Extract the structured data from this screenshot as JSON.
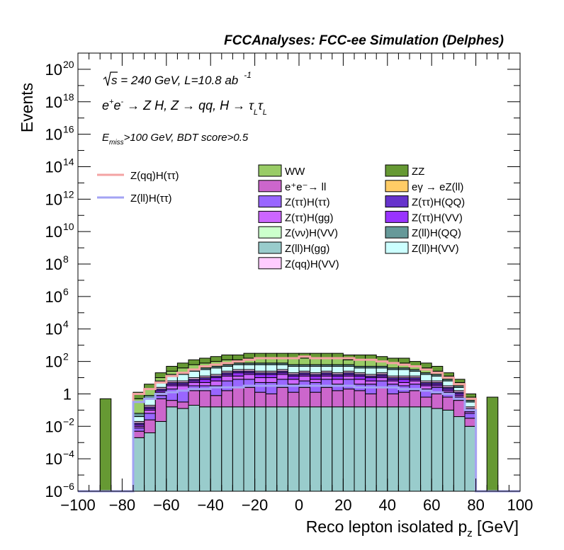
{
  "chart_data": {
    "type": "stacked-histogram",
    "title": "FCCAnalyses: FCC-ee Simulation (Delphes)",
    "xlabel": "Reco lepton isolated p",
    "xlabel_sub": "z",
    "xlabel_unit": " [GeV]",
    "ylabel": "Events",
    "xlim": [
      -100,
      100
    ],
    "ylim": [
      1e-06,
      1e+21
    ],
    "yscale": "log",
    "bin_width": 5,
    "x_ticks": [
      -100,
      -80,
      -60,
      -40,
      -20,
      0,
      20,
      40,
      60,
      80,
      100
    ],
    "x_tick_labels": [
      "−100",
      "−80",
      "−60",
      "−40",
      "−20",
      "0",
      "20",
      "40",
      "60",
      "80",
      "100"
    ],
    "y_ticks": [
      {
        "exp": -6,
        "label": "10",
        "sup": "−6"
      },
      {
        "exp": -4,
        "label": "10",
        "sup": "−4"
      },
      {
        "exp": -2,
        "label": "10",
        "sup": "−2"
      },
      {
        "exp": 0,
        "label": "1",
        "sup": ""
      },
      {
        "exp": 2,
        "label": "10",
        "sup": "2"
      },
      {
        "exp": 4,
        "label": "10",
        "sup": "4"
      },
      {
        "exp": 6,
        "label": "10",
        "sup": "6"
      },
      {
        "exp": 8,
        "label": "10",
        "sup": "8"
      },
      {
        "exp": 10,
        "label": "10",
        "sup": "10"
      },
      {
        "exp": 12,
        "label": "10",
        "sup": "12"
      },
      {
        "exp": 14,
        "label": "10",
        "sup": "14"
      },
      {
        "exp": 16,
        "label": "10",
        "sup": "16"
      },
      {
        "exp": 18,
        "label": "10",
        "sup": "18"
      },
      {
        "exp": 20,
        "label": "10",
        "sup": "20"
      }
    ],
    "annotations": {
      "energy": {
        "sqrt": "s",
        "text": " = 240 GeV, L=10.8 ab",
        "sup": "-1"
      },
      "process": "e⁺e⁻ → Z H, Z → qq, H → τₗτₗ",
      "process_parts": {
        "ep": "e",
        "ep_sup": "+",
        "em": "e",
        "em_sup": "-",
        "rest": " → Z H, Z  → qq, H  → τ",
        "sub1": "L",
        "tau2": "τ",
        "sub2": "L"
      },
      "cuts": {
        "E": "E",
        "sub": "miss",
        "rest": ">100 GeV, BDT score>0.5"
      }
    },
    "signal_legend": [
      {
        "name": "Z(qq)H(ττ)",
        "color": "#f4a3a3"
      },
      {
        "name": "Z(ll)H(ττ)",
        "color": "#a3a3f4"
      }
    ],
    "background_legend": [
      {
        "name": "WW",
        "color": "#99cc66"
      },
      {
        "name": "ZZ",
        "color": "#669933"
      },
      {
        "name": "e⁺e⁻→ ll",
        "color": "#cc66cc"
      },
      {
        "name": "eγ → eZ(ll)",
        "color": "#ffcc66"
      },
      {
        "name": "Z(ττ)H(ττ)",
        "color": "#9966ff"
      },
      {
        "name": "Z(ττ)H(QQ)",
        "color": "#6633cc"
      },
      {
        "name": "Z(ττ)H(gg)",
        "color": "#cc66ff"
      },
      {
        "name": "Z(ττ)H(VV)",
        "color": "#9933ff"
      },
      {
        "name": "Z(νν)H(VV)",
        "color": "#ccffcc"
      },
      {
        "name": "Z(ll)H(QQ)",
        "color": "#669999"
      },
      {
        "name": "Z(ll)H(gg)",
        "color": "#99cccc"
      },
      {
        "name": "Z(ll)H(VV)",
        "color": "#ccffff"
      },
      {
        "name": "Z(qq)H(VV)",
        "color": "#ffccff"
      }
    ],
    "x_bins_low": [
      -100,
      -95,
      -90,
      -85,
      -80,
      -75,
      -70,
      -65,
      -60,
      -55,
      -50,
      -45,
      -40,
      -35,
      -30,
      -25,
      -20,
      -15,
      -10,
      -5,
      0,
      5,
      10,
      15,
      20,
      25,
      30,
      35,
      40,
      45,
      50,
      55,
      60,
      65,
      70,
      75,
      80,
      85,
      90,
      95
    ],
    "stack_order": [
      "Z(ll)H(gg)",
      "eγ → eZ(ll)",
      "Z(νν)H(VV)",
      "e⁺e⁻→ ll",
      "Z(ττ)H(ττ)",
      "Z(ττ)H(gg)",
      "Z(ττ)H(VV)",
      "Z(ττ)H(QQ)",
      "Z(qq)H(VV)",
      "Z(ll)H(VV)",
      "Z(ll)H(QQ)",
      "WW",
      "ZZ"
    ],
    "stack_boundaries_log10": [
      [
        -6,
        -6,
        -6,
        -6,
        -6,
        -6,
        -6,
        -6,
        -6,
        -6,
        -6,
        -6,
        -6,
        -6,
        -6,
        -6,
        -6,
        -6,
        -6,
        -6,
        -6,
        -6,
        -6,
        -6,
        -6,
        -6,
        -6,
        -6,
        -6,
        -6,
        -6,
        -6,
        -6,
        -6,
        -6,
        -6,
        -6,
        -6,
        -6,
        -6
      ],
      [
        -6,
        -6,
        -6,
        -6,
        -6,
        -2.7,
        -2.4,
        -1.7,
        -0.8,
        -0.9,
        -0.7,
        -0.8,
        -0.8,
        -0.8,
        -0.8,
        -0.8,
        -0.8,
        -0.8,
        -0.8,
        -0.8,
        -0.8,
        -0.8,
        -0.8,
        -0.8,
        -0.8,
        -0.8,
        -0.8,
        -0.8,
        -0.8,
        -0.8,
        -0.8,
        -0.8,
        -0.9,
        -1.0,
        -1.4,
        -2.0,
        -6,
        -6,
        -6,
        -6
      ],
      [
        -6,
        -6,
        -6,
        -6,
        -6,
        -2.7,
        -2.4,
        -1.7,
        -0.8,
        -0.9,
        -0.7,
        -0.8,
        -0.8,
        -0.8,
        -0.8,
        -0.8,
        -0.8,
        -0.8,
        -0.8,
        -0.8,
        -0.8,
        -0.8,
        -0.8,
        -0.8,
        -0.8,
        -0.8,
        -0.8,
        -0.8,
        -0.8,
        -0.8,
        -0.8,
        -0.8,
        -0.9,
        -1.0,
        -1.4,
        -2.0,
        -6,
        -6,
        -6,
        -6
      ],
      [
        -6,
        -6,
        -6,
        -6,
        -6,
        -2.7,
        -2.4,
        -1.7,
        -0.8,
        -0.9,
        -0.7,
        -0.8,
        -0.8,
        -0.8,
        -0.8,
        -0.8,
        -0.8,
        -0.8,
        -0.8,
        -0.8,
        -0.8,
        -0.8,
        -0.8,
        -0.8,
        -0.8,
        -0.8,
        -0.8,
        -0.8,
        -0.8,
        -0.8,
        -0.8,
        -0.8,
        -0.9,
        -1.0,
        -1.4,
        -2.0,
        -6,
        -6,
        -6,
        -6
      ],
      [
        -6,
        -6,
        -6,
        -6,
        -6,
        -2.3,
        -1.6,
        -0.3,
        -0.4,
        -0.5,
        0.2,
        0.2,
        -0.1,
        0.2,
        0.4,
        0.4,
        0.1,
        0.0,
        0.4,
        0.1,
        0.4,
        0.1,
        0.4,
        0.2,
        0.3,
        0.2,
        0.0,
        0.4,
        0.0,
        0.1,
        0.2,
        -0.2,
        0.0,
        -0.2,
        -0.4,
        -1.5,
        -6,
        -6,
        -6,
        -6
      ],
      [
        -6,
        -6,
        -6,
        -6,
        -6,
        -2.1,
        -1.2,
        -0.1,
        0.3,
        0.2,
        0.5,
        0.5,
        0.5,
        0.8,
        0.9,
        0.9,
        0.7,
        0.7,
        0.9,
        0.6,
        0.8,
        0.7,
        0.9,
        0.6,
        0.9,
        0.6,
        0.6,
        0.8,
        0.6,
        0.5,
        0.6,
        0.3,
        0.4,
        0.1,
        -0.2,
        -1.2,
        -6,
        -6,
        -6,
        -6
      ],
      [
        -6,
        -6,
        -6,
        -6,
        -6,
        -2.0,
        -1.0,
        0.1,
        0.5,
        0.5,
        0.7,
        0.7,
        0.8,
        1.1,
        1.1,
        1.2,
        1.0,
        1.0,
        1.2,
        0.9,
        1.1,
        0.9,
        1.1,
        0.9,
        1.1,
        0.9,
        0.8,
        1.0,
        0.8,
        0.7,
        0.8,
        0.5,
        0.5,
        0.2,
        -0.1,
        -1.1,
        -6,
        -6,
        -6,
        -6
      ],
      [
        -6,
        -6,
        -6,
        -6,
        -6,
        -1.9,
        -0.9,
        0.2,
        0.6,
        0.6,
        0.8,
        0.9,
        1.0,
        1.2,
        1.3,
        1.3,
        1.2,
        1.2,
        1.3,
        1.1,
        1.2,
        1.1,
        1.2,
        1.1,
        1.2,
        1.1,
        1.0,
        1.1,
        0.9,
        0.9,
        0.9,
        0.6,
        0.6,
        0.3,
        0.0,
        -1.0,
        -6,
        -6,
        -6,
        -6
      ],
      [
        -6,
        -6,
        -6,
        -6,
        -6,
        -1.8,
        -0.8,
        0.3,
        0.7,
        0.7,
        0.9,
        1.0,
        1.1,
        1.3,
        1.4,
        1.4,
        1.3,
        1.3,
        1.4,
        1.2,
        1.3,
        1.2,
        1.3,
        1.2,
        1.3,
        1.2,
        1.1,
        1.2,
        1.0,
        1.0,
        1.0,
        0.7,
        0.7,
        0.4,
        0.1,
        -0.9,
        -6,
        -6,
        -6,
        -6
      ],
      [
        -6,
        -6,
        -6,
        -6,
        -6,
        -1.7,
        -0.7,
        0.4,
        0.8,
        0.8,
        1.0,
        1.1,
        1.2,
        1.4,
        1.5,
        1.5,
        1.4,
        1.4,
        1.5,
        1.3,
        1.4,
        1.3,
        1.4,
        1.3,
        1.4,
        1.3,
        1.2,
        1.3,
        1.1,
        1.1,
        1.1,
        0.8,
        0.8,
        0.5,
        0.2,
        -0.8,
        -6,
        -6,
        -6,
        -6
      ],
      [
        -6,
        -6,
        -6,
        -6,
        -6,
        -1.4,
        -0.3,
        0.7,
        1.1,
        1.2,
        1.4,
        1.5,
        1.6,
        1.7,
        1.8,
        1.8,
        1.8,
        1.8,
        1.8,
        1.7,
        1.7,
        1.7,
        1.7,
        1.7,
        1.7,
        1.6,
        1.6,
        1.6,
        1.5,
        1.5,
        1.4,
        1.2,
        1.1,
        0.8,
        0.4,
        -0.5,
        -6,
        -6,
        -6,
        -6
      ],
      [
        -6,
        -6,
        -6,
        -6,
        -6,
        -1.2,
        -0.1,
        0.8,
        1.2,
        1.3,
        1.5,
        1.6,
        1.7,
        1.8,
        1.9,
        1.9,
        1.9,
        1.9,
        1.9,
        1.8,
        1.8,
        1.8,
        1.8,
        1.8,
        1.8,
        1.7,
        1.7,
        1.7,
        1.6,
        1.6,
        1.5,
        1.3,
        1.2,
        0.9,
        0.5,
        -0.4,
        -6,
        -6,
        -6,
        -6
      ],
      [
        -6,
        -6,
        -6,
        -6,
        -6,
        -0.3,
        0.3,
        1.0,
        1.4,
        1.6,
        1.8,
        1.9,
        2.0,
        2.1,
        2.1,
        2.2,
        2.2,
        2.2,
        2.2,
        2.2,
        2.2,
        2.2,
        2.2,
        2.2,
        2.1,
        2.1,
        2.1,
        2.0,
        1.9,
        1.9,
        1.7,
        1.6,
        1.4,
        1.1,
        0.7,
        -0.2,
        -6,
        -6,
        -6,
        -6
      ],
      [
        -6,
        -6,
        -0.3,
        -6,
        -6,
        0.1,
        0.6,
        1.3,
        1.7,
        1.9,
        2.1,
        2.2,
        2.3,
        2.4,
        2.4,
        2.5,
        2.5,
        2.5,
        2.5,
        2.5,
        2.5,
        2.5,
        2.5,
        2.5,
        2.4,
        2.4,
        2.4,
        2.3,
        2.2,
        2.2,
        2.0,
        1.9,
        1.7,
        1.3,
        0.9,
        0.0,
        -6,
        -0.2,
        -6,
        -6
      ]
    ],
    "signal_series_log10": [
      {
        "name": "Z(qq)H(ττ)",
        "values": [
          -6,
          -6,
          -6,
          -6,
          -6,
          0.0,
          0.3,
          0.7,
          1.1,
          1.3,
          1.5,
          1.7,
          1.8,
          1.9,
          2.0,
          2.1,
          2.2,
          2.2,
          2.2,
          2.2,
          2.3,
          2.2,
          2.2,
          2.2,
          2.2,
          2.1,
          2.1,
          2.0,
          1.9,
          1.8,
          1.7,
          1.5,
          1.3,
          1.0,
          0.6,
          -0.3,
          -6,
          -6,
          -6,
          -6
        ]
      },
      {
        "name": "Z(ll)H(ττ)",
        "values": [
          -6,
          -6,
          -6,
          -6,
          -6,
          -0.5,
          -0.3,
          0.0,
          0.1,
          0.2,
          0.3,
          0.3,
          0.4,
          0.4,
          0.4,
          0.5,
          0.5,
          0.5,
          0.5,
          0.5,
          0.5,
          0.5,
          0.5,
          0.5,
          0.5,
          0.4,
          0.4,
          0.4,
          0.4,
          0.3,
          0.3,
          0.2,
          0.1,
          0.0,
          -0.3,
          -1.0,
          -6,
          -6,
          -6,
          -6
        ]
      }
    ],
    "grid": false,
    "legend_position": "top-right"
  }
}
